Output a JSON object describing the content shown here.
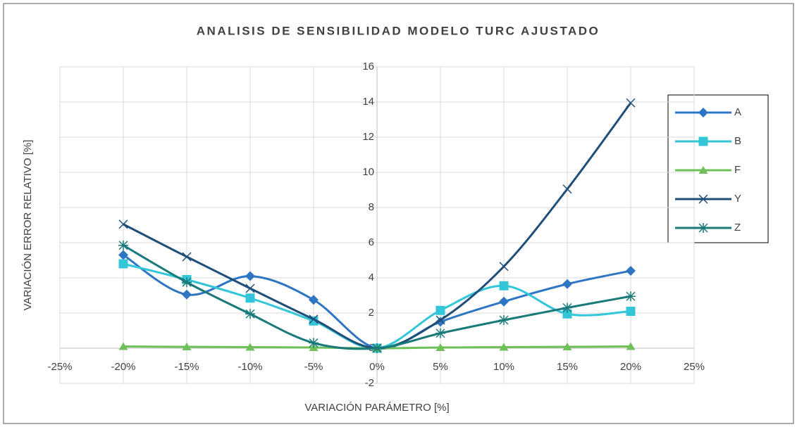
{
  "chart_data": {
    "type": "line",
    "title": "ANALISIS DE SENSIBILIDAD MODELO TURC AJUSTADO",
    "x_label": "VARIACIÓN PARÁMETRO [%]",
    "y_label": "VARIACIÓN ERROR RELATIVO [%]",
    "x": [
      -20,
      -15,
      -10,
      -5,
      0,
      5,
      10,
      15,
      20
    ],
    "xlim": [
      -25,
      25
    ],
    "xticks": [
      {
        "value": -25,
        "label": "-25%"
      },
      {
        "value": -20,
        "label": "-20%"
      },
      {
        "value": -15,
        "label": "-15%"
      },
      {
        "value": -10,
        "label": "-10%"
      },
      {
        "value": -5,
        "label": "-5%"
      },
      {
        "value": 0,
        "label": "0%"
      },
      {
        "value": 5,
        "label": "5%"
      },
      {
        "value": 10,
        "label": "10%"
      },
      {
        "value": 15,
        "label": "15%"
      },
      {
        "value": 20,
        "label": "20%"
      },
      {
        "value": 25,
        "label": "25%"
      }
    ],
    "ylim": [
      -2,
      16
    ],
    "yticks": [
      -2,
      0,
      2,
      4,
      6,
      8,
      10,
      12,
      14,
      16
    ],
    "grid": true,
    "smooth": true,
    "legend": "right",
    "series": [
      {
        "name": "A",
        "color": "#2e75c4",
        "marker": "diamond",
        "values": [
          5.3,
          3.05,
          4.1,
          2.75,
          0,
          1.5,
          2.65,
          3.65,
          4.4
        ]
      },
      {
        "name": "B",
        "color": "#33c6d8",
        "marker": "square",
        "values": [
          4.8,
          3.9,
          2.85,
          1.55,
          0,
          2.15,
          3.55,
          1.95,
          2.1
        ]
      },
      {
        "name": "F",
        "color": "#70c05a",
        "marker": "triangle",
        "values": [
          0.1,
          0.08,
          0.06,
          0.04,
          0,
          0.04,
          0.06,
          0.08,
          0.1
        ]
      },
      {
        "name": "Y",
        "color": "#1f4e79",
        "marker": "x",
        "values": [
          7.05,
          5.2,
          3.4,
          1.65,
          0,
          1.6,
          4.65,
          9.05,
          13.95
        ]
      },
      {
        "name": "Z",
        "color": "#1a7a7a",
        "marker": "star",
        "values": [
          5.85,
          3.75,
          1.95,
          0.3,
          0,
          0.85,
          1.6,
          2.3,
          2.95
        ]
      }
    ]
  }
}
